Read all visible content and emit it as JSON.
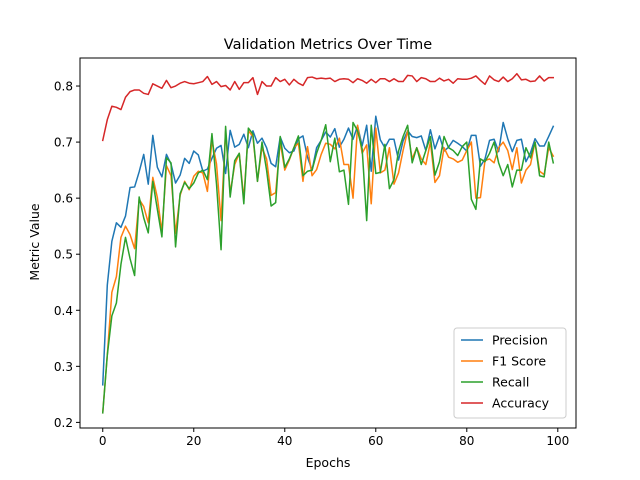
{
  "chart_data": {
    "type": "line",
    "title": "Validation Metrics Over Time",
    "xlabel": "Epochs",
    "ylabel": "Metric Value",
    "xlim": [
      -5,
      104
    ],
    "ylim": [
      0.19,
      0.85
    ],
    "x_ticks": [
      0,
      20,
      40,
      60,
      80,
      100
    ],
    "y_ticks": [
      0.2,
      0.3,
      0.4,
      0.5,
      0.6,
      0.7,
      0.8
    ],
    "grid": false,
    "legend_position": "lower-right",
    "series": [
      {
        "name": "Precision",
        "color": "#1f77b4",
        "values": [
          0.267,
          0.445,
          0.523,
          0.556,
          0.548,
          0.568,
          0.619,
          0.62,
          0.647,
          0.678,
          0.625,
          0.712,
          0.655,
          0.638,
          0.678,
          0.661,
          0.627,
          0.641,
          0.671,
          0.662,
          0.684,
          0.677,
          0.648,
          0.652,
          0.671,
          0.689,
          0.694,
          0.644,
          0.721,
          0.691,
          0.696,
          0.714,
          0.69,
          0.72,
          0.698,
          0.707,
          0.69,
          0.662,
          0.656,
          0.709,
          0.689,
          0.681,
          0.684,
          0.706,
          0.711,
          0.673,
          0.65,
          0.69,
          0.703,
          0.718,
          0.709,
          0.724,
          0.691,
          0.705,
          0.725,
          0.705,
          0.729,
          0.693,
          0.73,
          0.648,
          0.746,
          0.704,
          0.69,
          0.705,
          0.705,
          0.668,
          0.702,
          0.72,
          0.71,
          0.708,
          0.711,
          0.685,
          0.722,
          0.688,
          0.711,
          0.684,
          0.691,
          0.703,
          0.698,
          0.692,
          0.684,
          0.712,
          0.712,
          0.657,
          0.67,
          0.703,
          0.705,
          0.683,
          0.735,
          0.706,
          0.683,
          0.703,
          0.705,
          0.665,
          0.681,
          0.706,
          0.693,
          0.693,
          0.71,
          0.728
        ]
      },
      {
        "name": "F1 Score",
        "color": "#ff7f0e",
        "values": [
          0.217,
          0.32,
          0.432,
          0.46,
          0.53,
          0.55,
          0.535,
          0.51,
          0.598,
          0.585,
          0.556,
          0.637,
          0.601,
          0.54,
          0.658,
          0.64,
          0.537,
          0.605,
          0.63,
          0.615,
          0.639,
          0.648,
          0.645,
          0.612,
          0.703,
          0.661,
          0.56,
          0.72,
          0.608,
          0.66,
          0.68,
          0.599,
          0.72,
          0.71,
          0.63,
          0.69,
          0.67,
          0.605,
          0.61,
          0.7,
          0.65,
          0.668,
          0.69,
          0.698,
          0.63,
          0.692,
          0.64,
          0.651,
          0.678,
          0.698,
          0.696,
          0.688,
          0.707,
          0.66,
          0.66,
          0.6,
          0.73,
          0.68,
          0.695,
          0.59,
          0.725,
          0.645,
          0.65,
          0.69,
          0.625,
          0.645,
          0.685,
          0.72,
          0.67,
          0.69,
          0.67,
          0.66,
          0.7,
          0.628,
          0.64,
          0.69,
          0.673,
          0.67,
          0.664,
          0.668,
          0.685,
          0.7,
          0.6,
          0.601,
          0.667,
          0.67,
          0.663,
          0.69,
          0.7,
          0.685,
          0.651,
          0.69,
          0.627,
          0.65,
          0.66,
          0.7,
          0.648,
          0.642,
          0.69,
          0.675
        ]
      },
      {
        "name": "Recall",
        "color": "#2ca02c",
        "values": [
          0.217,
          0.32,
          0.39,
          0.413,
          0.482,
          0.53,
          0.492,
          0.462,
          0.602,
          0.565,
          0.538,
          0.63,
          0.58,
          0.531,
          0.672,
          0.663,
          0.513,
          0.608,
          0.628,
          0.617,
          0.627,
          0.645,
          0.65,
          0.633,
          0.715,
          0.625,
          0.508,
          0.728,
          0.602,
          0.667,
          0.68,
          0.59,
          0.725,
          0.714,
          0.63,
          0.7,
          0.65,
          0.586,
          0.592,
          0.71,
          0.655,
          0.67,
          0.69,
          0.711,
          0.64,
          0.648,
          0.65,
          0.68,
          0.703,
          0.731,
          0.665,
          0.707,
          0.647,
          0.65,
          0.589,
          0.735,
          0.72,
          0.688,
          0.56,
          0.73,
          0.644,
          0.646,
          0.696,
          0.617,
          0.633,
          0.684,
          0.71,
          0.73,
          0.663,
          0.69,
          0.66,
          0.685,
          0.71,
          0.641,
          0.665,
          0.71,
          0.69,
          0.685,
          0.676,
          0.692,
          0.7,
          0.598,
          0.58,
          0.67,
          0.665,
          0.68,
          0.7,
          0.663,
          0.64,
          0.66,
          0.62,
          0.65,
          0.65,
          0.69,
          0.672,
          0.7,
          0.64,
          0.638,
          0.7,
          0.663
        ]
      },
      {
        "name": "Accuracy",
        "color": "#d62728",
        "values": [
          0.703,
          0.74,
          0.764,
          0.762,
          0.758,
          0.78,
          0.79,
          0.793,
          0.793,
          0.787,
          0.785,
          0.804,
          0.8,
          0.796,
          0.81,
          0.797,
          0.8,
          0.805,
          0.808,
          0.805,
          0.804,
          0.806,
          0.808,
          0.817,
          0.803,
          0.808,
          0.799,
          0.801,
          0.793,
          0.808,
          0.794,
          0.806,
          0.806,
          0.815,
          0.785,
          0.808,
          0.8,
          0.8,
          0.815,
          0.808,
          0.812,
          0.802,
          0.812,
          0.805,
          0.801,
          0.815,
          0.816,
          0.813,
          0.814,
          0.813,
          0.814,
          0.808,
          0.812,
          0.813,
          0.812,
          0.806,
          0.813,
          0.81,
          0.805,
          0.812,
          0.806,
          0.813,
          0.813,
          0.808,
          0.813,
          0.808,
          0.808,
          0.819,
          0.818,
          0.808,
          0.815,
          0.813,
          0.808,
          0.808,
          0.814,
          0.809,
          0.812,
          0.805,
          0.813,
          0.812,
          0.812,
          0.814,
          0.818,
          0.81,
          0.803,
          0.818,
          0.811,
          0.808,
          0.816,
          0.808,
          0.813,
          0.822,
          0.811,
          0.812,
          0.808,
          0.809,
          0.818,
          0.809,
          0.815,
          0.815
        ]
      }
    ]
  }
}
